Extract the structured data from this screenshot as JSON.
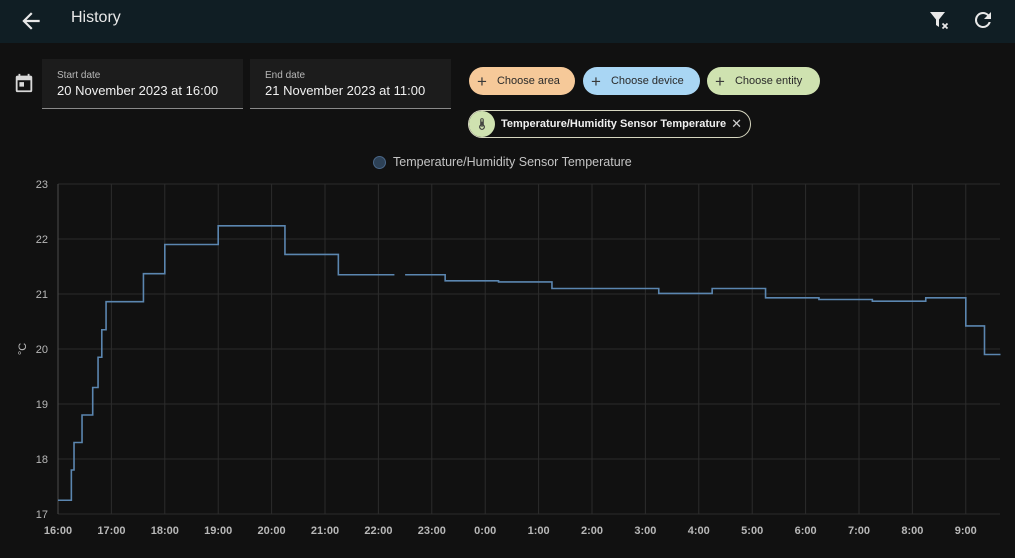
{
  "header": {
    "title": "History"
  },
  "dates": {
    "start": {
      "label": "Start date",
      "value": "20 November 2023 at 16:00"
    },
    "end": {
      "label": "End date",
      "value": "21 November 2023 at 11:00"
    }
  },
  "chips": {
    "area": "Choose area",
    "device": "Choose device",
    "entity": "Choose entity"
  },
  "selected_entity": {
    "label": "Temperature/Humidity Sensor Temperature",
    "icon": "thermometer-icon"
  },
  "colors": {
    "line": "#5b86b0",
    "bg": "#111111",
    "header": "#101e24",
    "area_chip": "#f6c999",
    "device_chip": "#a9d6f4",
    "entity_chip": "#cfe2b0"
  },
  "chart_data": {
    "type": "line",
    "step": true,
    "ylabel": "°C",
    "ylim": [
      17,
      23
    ],
    "yticks": [
      17,
      18,
      19,
      20,
      21,
      22,
      23
    ],
    "xticks": [
      "16:00",
      "17:00",
      "18:00",
      "19:00",
      "20:00",
      "21:00",
      "22:00",
      "23:00",
      "0:00",
      "1:00",
      "2:00",
      "3:00",
      "4:00",
      "5:00",
      "6:00",
      "7:00",
      "8:00",
      "9:00"
    ],
    "grid": true,
    "legend_position": "top-center",
    "series": [
      {
        "name": "Temperature/Humidity Sensor Temperature",
        "points": [
          [
            0.0,
            17.25
          ],
          [
            0.25,
            17.8
          ],
          [
            0.3,
            18.3
          ],
          [
            0.45,
            18.8
          ],
          [
            0.65,
            19.3
          ],
          [
            0.75,
            19.85
          ],
          [
            0.82,
            20.35
          ],
          [
            0.9,
            20.86
          ],
          [
            1.6,
            21.37
          ],
          [
            2.0,
            21.9
          ],
          [
            3.0,
            22.24
          ],
          [
            4.25,
            21.72
          ],
          [
            5.25,
            21.35
          ],
          [
            6.3,
            21.35
          ],
          [
            6.5,
            21.35
          ],
          [
            7.25,
            21.24
          ],
          [
            8.25,
            21.22
          ],
          [
            9.25,
            21.1
          ],
          [
            11.25,
            21.01
          ],
          [
            12.25,
            21.1
          ],
          [
            13.25,
            20.93
          ],
          [
            14.25,
            20.9
          ],
          [
            15.25,
            20.87
          ],
          [
            16.25,
            20.93
          ],
          [
            17.0,
            20.42
          ],
          [
            17.35,
            19.9
          ],
          [
            17.65,
            19.9
          ]
        ],
        "gap": [
          6.3,
          6.5
        ]
      }
    ]
  }
}
